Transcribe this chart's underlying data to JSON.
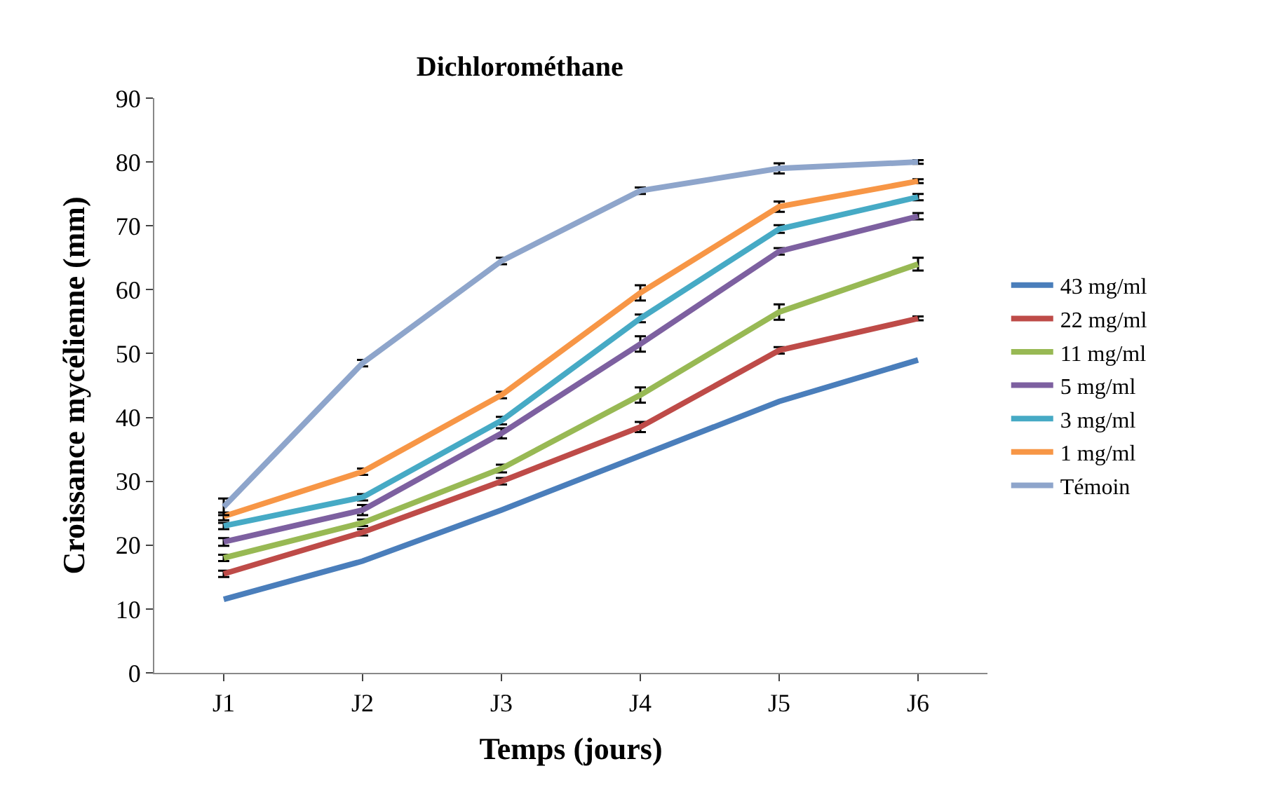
{
  "chart_data": {
    "type": "line",
    "title": "Dichlorométhane",
    "xlabel": "Temps (jours)",
    "ylabel": "Croissance mycélienne (mm)",
    "categories": [
      "J1",
      "J2",
      "J3",
      "J4",
      "J5",
      "J6"
    ],
    "ylim": [
      0,
      90
    ],
    "yticks": [
      0,
      10,
      20,
      30,
      40,
      50,
      60,
      70,
      80,
      90
    ],
    "legend": "right",
    "series": [
      {
        "name": "43 mg/ml",
        "color": "#4a7ebb",
        "values": [
          11.5,
          17.5,
          25.5,
          34,
          42.5,
          49
        ]
      },
      {
        "name": "22 mg/ml",
        "color": "#be4b48",
        "values": [
          15.5,
          22,
          30,
          38.5,
          50.5,
          55.5
        ],
        "errors": [
          0.5,
          0.5,
          0.5,
          0.8,
          0.5,
          0.3
        ]
      },
      {
        "name": "11 mg/ml",
        "color": "#98b954",
        "values": [
          18,
          23.5,
          32,
          43.5,
          56.5,
          64
        ],
        "errors": [
          0.5,
          0.5,
          0.6,
          1.2,
          1.2,
          1
        ]
      },
      {
        "name": "5 mg/ml",
        "color": "#7d60a0",
        "values": [
          20.5,
          25.5,
          37.5,
          51.5,
          66,
          71.5
        ],
        "errors": [
          0.6,
          0.8,
          0.8,
          1.2,
          0.5,
          0.5
        ]
      },
      {
        "name": "3 mg/ml",
        "color": "#46aac5",
        "values": [
          23,
          27.5,
          39.5,
          55.5,
          69.5,
          74.5
        ],
        "errors": [
          0.5,
          0.5,
          0.6,
          0.6,
          0.6,
          0.5
        ]
      },
      {
        "name": "1 mg/ml",
        "color": "#f79646",
        "values": [
          24.5,
          31.5,
          43.5,
          59.5,
          73,
          77
        ],
        "errors": [
          0.6,
          0.5,
          0.5,
          1.2,
          0.8,
          0.3
        ]
      },
      {
        "name": "Témoin",
        "color": "#8ea5cb",
        "values": [
          26,
          48.5,
          64.5,
          75.5,
          79,
          80
        ],
        "errors": [
          1.3,
          0.5,
          0.5,
          0.5,
          0.8,
          0.3
        ]
      }
    ]
  }
}
